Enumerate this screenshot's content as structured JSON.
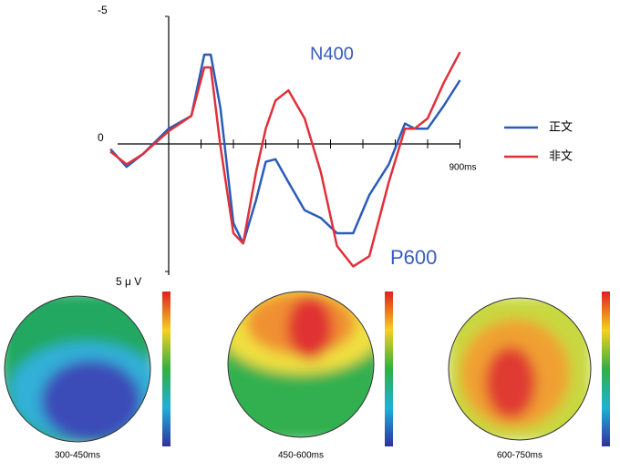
{
  "chart_data": {
    "type": "line",
    "x": [
      -180,
      -130,
      -80,
      0,
      70,
      110,
      130,
      160,
      200,
      230,
      270,
      300,
      330,
      370,
      420,
      470,
      520,
      570,
      620,
      680,
      730,
      760,
      800,
      850,
      900
    ],
    "series": [
      {
        "name": "正文",
        "color": "#2a5cb8",
        "values": [
          0.2,
          0.9,
          0.4,
          -0.6,
          -1.1,
          -3.5,
          -3.5,
          -1.4,
          3.1,
          3.9,
          2.2,
          0.7,
          0.6,
          1.5,
          2.6,
          2.9,
          3.5,
          3.5,
          2.0,
          0.8,
          -0.8,
          -0.6,
          -0.6,
          -1.5,
          -2.5
        ]
      },
      {
        "name": "非文",
        "color": "#e0303a",
        "values": [
          0.3,
          0.8,
          0.4,
          -0.5,
          -1.1,
          -3.0,
          -3.0,
          0.1,
          3.5,
          3.9,
          1.1,
          -0.6,
          -1.7,
          -2.1,
          -1.0,
          1.1,
          4.0,
          4.8,
          4.4,
          1.5,
          -0.6,
          -0.6,
          -1.0,
          -2.4,
          -3.6
        ]
      }
    ],
    "xlim": [
      -200,
      900
    ],
    "xticks": [
      0,
      {
        "value": 100,
        "label": null
      },
      {
        "value": 200,
        "label": null
      },
      {
        "value": 300,
        "label": null
      },
      {
        "value": 400,
        "label": null
      },
      {
        "value": 500,
        "label": null
      },
      {
        "value": 600,
        "label": null
      },
      {
        "value": 700,
        "label": null
      },
      {
        "value": 800,
        "label": null
      },
      {
        "value": 900,
        "label": "900ms"
      }
    ],
    "ylim": [
      5,
      -5
    ],
    "yticks": [
      -5,
      0,
      {
        "value": 5,
        "label": "5 μ V"
      }
    ],
    "y_inverted": true,
    "legend": "right",
    "annotations": [
      "N400",
      "P600"
    ],
    "topomap_labels": [
      "300-450ms",
      "450-600ms",
      "600-750ms"
    ]
  }
}
